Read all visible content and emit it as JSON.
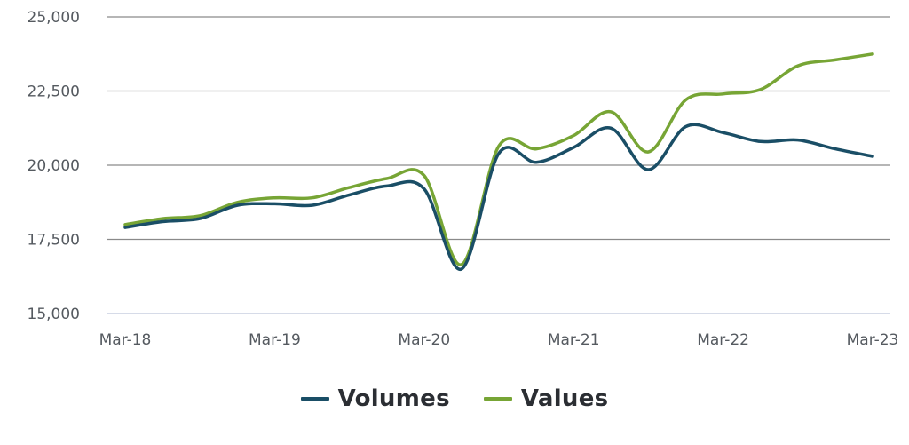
{
  "chart_data": {
    "type": "line",
    "title": "",
    "xlabel": "",
    "ylabel": "",
    "ylim": [
      15000,
      25000
    ],
    "yticks": [
      "15,000",
      "17,500",
      "20,000",
      "22,500",
      "25,000"
    ],
    "ytick_values": [
      15000,
      17500,
      20000,
      22500,
      25000
    ],
    "xticks": [
      "Mar-18",
      "Mar-19",
      "Mar-20",
      "Mar-21",
      "Mar-22",
      "Mar-23"
    ],
    "grid": true,
    "legend_position": "bottom-center",
    "x": [
      "Mar-18",
      "Jun-18",
      "Sep-18",
      "Dec-18",
      "Mar-19",
      "Jun-19",
      "Sep-19",
      "Dec-19",
      "Mar-20",
      "Jun-20",
      "Sep-20",
      "Dec-20",
      "Mar-21",
      "Jun-21",
      "Sep-21",
      "Dec-21",
      "Mar-22",
      "Jun-22",
      "Sep-22",
      "Dec-22",
      "Mar-23"
    ],
    "series": [
      {
        "name": "Volumes",
        "color": "#1a4e66",
        "values": [
          17900,
          18100,
          18200,
          18650,
          18700,
          18650,
          19000,
          19300,
          19200,
          16500,
          20400,
          20100,
          20600,
          21250,
          19850,
          21300,
          21100,
          20800,
          20850,
          20550,
          20300
        ]
      },
      {
        "name": "Values",
        "color": "#77a535",
        "values": [
          18000,
          18200,
          18300,
          18750,
          18900,
          18900,
          19250,
          19550,
          19650,
          16650,
          20650,
          20550,
          21000,
          21800,
          20450,
          22200,
          22400,
          22550,
          23350,
          23550,
          23750
        ]
      }
    ]
  }
}
